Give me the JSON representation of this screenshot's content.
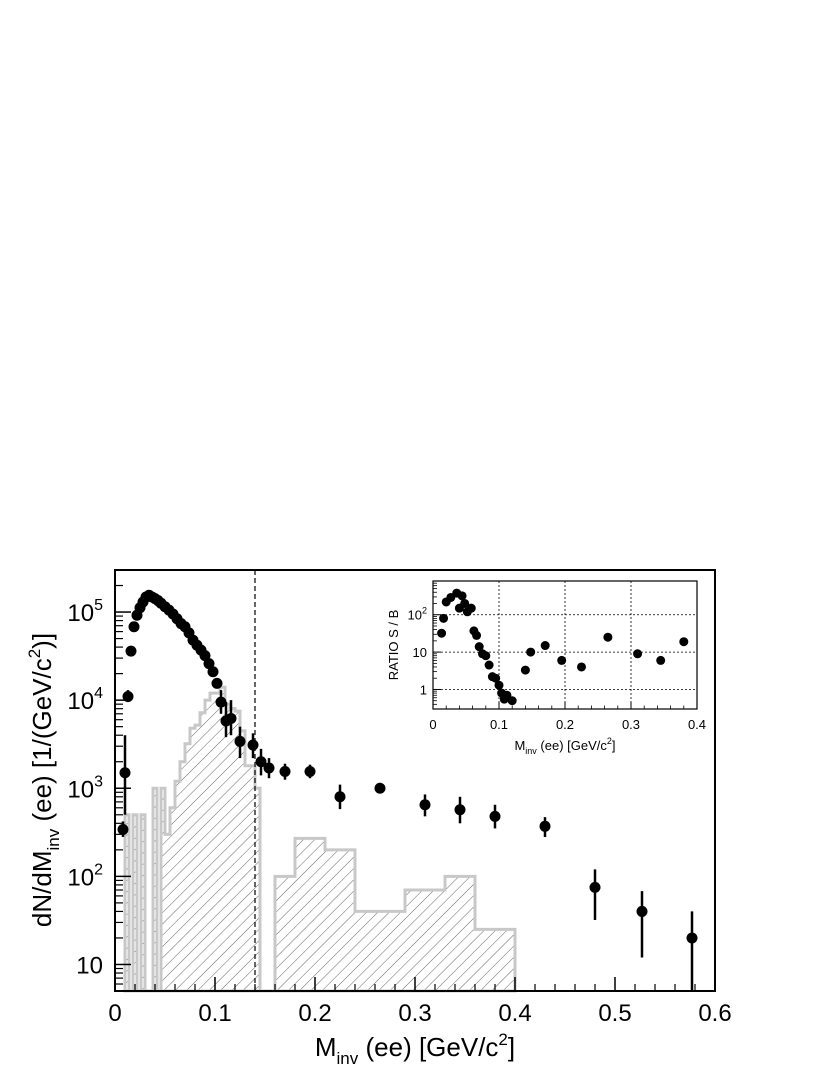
{
  "chart_data": [
    {
      "type": "scatter",
      "xlabel_main": "M",
      "xlabel_sub": "inv",
      "xlabel_rest": " (ee) [GeV/c",
      "xlabel_sup": "2",
      "xlabel_close": "]",
      "ylabel_main": "dN/dM",
      "ylabel_sub": "inv",
      "ylabel_rest": " (ee) [1/(GeV/c",
      "ylabel_sup": "2",
      "ylabel_close": ")]",
      "xlim": [
        0,
        0.6
      ],
      "ylim": [
        5,
        300000
      ],
      "yscale": "log",
      "grid": false,
      "x_ticks": [
        "0",
        "0.1",
        "0.2",
        "0.3",
        "0.4",
        "0.5",
        "0.6"
      ],
      "y_ticks": [
        {
          "base": "10",
          "exp": ""
        },
        {
          "base": "10",
          "exp": "2"
        },
        {
          "base": "10",
          "exp": "3"
        },
        {
          "base": "10",
          "exp": "4"
        },
        {
          "base": "10",
          "exp": "5"
        }
      ],
      "dashed_line_x": 0.14,
      "data_points": [
        {
          "x": 0.008,
          "y": 340,
          "lo": 280,
          "hi": 420
        },
        {
          "x": 0.01,
          "y": 1500,
          "lo": 500,
          "hi": 4000
        },
        {
          "x": 0.013,
          "y": 11000,
          "lo": 9500,
          "hi": 13000
        },
        {
          "x": 0.016,
          "y": 36000
        },
        {
          "x": 0.019,
          "y": 68000
        },
        {
          "x": 0.022,
          "y": 92000
        },
        {
          "x": 0.025,
          "y": 112000
        },
        {
          "x": 0.028,
          "y": 130000
        },
        {
          "x": 0.031,
          "y": 148000
        },
        {
          "x": 0.034,
          "y": 155000
        },
        {
          "x": 0.037,
          "y": 148000
        },
        {
          "x": 0.04,
          "y": 142000
        },
        {
          "x": 0.043,
          "y": 135000
        },
        {
          "x": 0.046,
          "y": 126000
        },
        {
          "x": 0.05,
          "y": 115000
        },
        {
          "x": 0.054,
          "y": 105000
        },
        {
          "x": 0.058,
          "y": 95000
        },
        {
          "x": 0.062,
          "y": 84000
        },
        {
          "x": 0.066,
          "y": 74000
        },
        {
          "x": 0.07,
          "y": 68000
        },
        {
          "x": 0.074,
          "y": 58000
        },
        {
          "x": 0.078,
          "y": 48000
        },
        {
          "x": 0.082,
          "y": 42000
        },
        {
          "x": 0.086,
          "y": 37000
        },
        {
          "x": 0.09,
          "y": 32000
        },
        {
          "x": 0.094,
          "y": 26000
        },
        {
          "x": 0.098,
          "y": 21000
        },
        {
          "x": 0.102,
          "y": 15500
        },
        {
          "x": 0.106,
          "y": 9500,
          "lo": 7000,
          "hi": 13000
        },
        {
          "x": 0.111,
          "y": 5800,
          "lo": 3800,
          "hi": 9500
        },
        {
          "x": 0.116,
          "y": 6200,
          "lo": 4000,
          "hi": 10000
        },
        {
          "x": 0.125,
          "y": 3400,
          "lo": 2200,
          "hi": 5000
        },
        {
          "x": 0.138,
          "y": 3100,
          "lo": 2200,
          "hi": 4200
        },
        {
          "x": 0.146,
          "y": 2000,
          "lo": 1400,
          "hi": 2800
        },
        {
          "x": 0.154,
          "y": 1700,
          "lo": 1300,
          "hi": 2200
        },
        {
          "x": 0.17,
          "y": 1550,
          "lo": 1250,
          "hi": 1900
        },
        {
          "x": 0.195,
          "y": 1550,
          "lo": 1300,
          "hi": 1850
        },
        {
          "x": 0.225,
          "y": 800,
          "lo": 580,
          "hi": 1100
        },
        {
          "x": 0.265,
          "y": 1000,
          "lo": 880,
          "hi": 1150
        },
        {
          "x": 0.31,
          "y": 650,
          "lo": 480,
          "hi": 850
        },
        {
          "x": 0.345,
          "y": 570,
          "lo": 400,
          "hi": 800
        },
        {
          "x": 0.38,
          "y": 480,
          "lo": 350,
          "hi": 650
        },
        {
          "x": 0.43,
          "y": 370,
          "lo": 280,
          "hi": 470
        },
        {
          "x": 0.48,
          "y": 75,
          "lo": 32,
          "hi": 120
        },
        {
          "x": 0.527,
          "y": 40,
          "lo": 12,
          "hi": 68
        },
        {
          "x": 0.577,
          "y": 20,
          "lo": 5,
          "hi": 40
        }
      ],
      "background_histogram": [
        [
          0.01,
          0.014,
          500
        ],
        [
          0.014,
          0.018,
          5
        ],
        [
          0.018,
          0.022,
          500
        ],
        [
          0.022,
          0.026,
          5
        ],
        [
          0.026,
          0.03,
          500
        ],
        [
          0.03,
          0.038,
          5
        ],
        [
          0.038,
          0.042,
          1000
        ],
        [
          0.042,
          0.046,
          5
        ],
        [
          0.046,
          0.05,
          1000
        ],
        [
          0.05,
          0.055,
          300
        ],
        [
          0.055,
          0.06,
          600
        ],
        [
          0.06,
          0.065,
          1200
        ],
        [
          0.065,
          0.07,
          2000
        ],
        [
          0.07,
          0.075,
          3200
        ],
        [
          0.075,
          0.08,
          4800
        ],
        [
          0.08,
          0.085,
          5200
        ],
        [
          0.085,
          0.09,
          7200
        ],
        [
          0.09,
          0.095,
          10000
        ],
        [
          0.095,
          0.1,
          12000
        ],
        [
          0.1,
          0.105,
          12000
        ],
        [
          0.105,
          0.11,
          14000
        ],
        [
          0.11,
          0.115,
          9000
        ],
        [
          0.115,
          0.12,
          8000
        ],
        [
          0.12,
          0.125,
          7500
        ],
        [
          0.125,
          0.13,
          4500
        ],
        [
          0.13,
          0.135,
          1800
        ],
        [
          0.135,
          0.14,
          1800
        ],
        [
          0.14,
          0.145,
          1000
        ],
        [
          0.145,
          0.155,
          5
        ],
        [
          0.155,
          0.16,
          5
        ],
        [
          0.16,
          0.18,
          100
        ],
        [
          0.18,
          0.21,
          270
        ],
        [
          0.21,
          0.24,
          200
        ],
        [
          0.24,
          0.29,
          40
        ],
        [
          0.29,
          0.33,
          70
        ],
        [
          0.33,
          0.36,
          100
        ],
        [
          0.36,
          0.4,
          25
        ]
      ]
    },
    {
      "type": "scatter",
      "xlabel_main": "M",
      "xlabel_sub": "inv",
      "xlabel_rest": " (ee) [GeV/c",
      "xlabel_sup": "2",
      "xlabel_close": "]",
      "ylabel": "RATIO S / B",
      "xlim": [
        0,
        0.4
      ],
      "ylim": [
        0.3,
        800
      ],
      "yscale": "log",
      "grid": true,
      "x_ticks": [
        "0",
        "0.1",
        "0.2",
        "0.3",
        "0.4"
      ],
      "y_ticks": [
        {
          "base": "1",
          "exp": ""
        },
        {
          "base": "10",
          "exp": ""
        },
        {
          "base": "10",
          "exp": "2"
        }
      ],
      "data_points": [
        {
          "x": 0.013,
          "y": 32
        },
        {
          "x": 0.016,
          "y": 80
        },
        {
          "x": 0.02,
          "y": 220
        },
        {
          "x": 0.027,
          "y": 290
        },
        {
          "x": 0.036,
          "y": 380
        },
        {
          "x": 0.04,
          "y": 150
        },
        {
          "x": 0.044,
          "y": 320
        },
        {
          "x": 0.048,
          "y": 200
        },
        {
          "x": 0.052,
          "y": 120
        },
        {
          "x": 0.058,
          "y": 150
        },
        {
          "x": 0.062,
          "y": 37
        },
        {
          "x": 0.066,
          "y": 28
        },
        {
          "x": 0.07,
          "y": 14
        },
        {
          "x": 0.075,
          "y": 9
        },
        {
          "x": 0.08,
          "y": 8
        },
        {
          "x": 0.085,
          "y": 4.5
        },
        {
          "x": 0.09,
          "y": 2.2
        },
        {
          "x": 0.095,
          "y": 2
        },
        {
          "x": 0.1,
          "y": 1.3
        },
        {
          "x": 0.104,
          "y": 0.8
        },
        {
          "x": 0.108,
          "y": 0.55
        },
        {
          "x": 0.112,
          "y": 0.7
        },
        {
          "x": 0.12,
          "y": 0.5
        },
        {
          "x": 0.14,
          "y": 3.3
        },
        {
          "x": 0.148,
          "y": 10
        },
        {
          "x": 0.17,
          "y": 15
        },
        {
          "x": 0.195,
          "y": 6
        },
        {
          "x": 0.225,
          "y": 4
        },
        {
          "x": 0.265,
          "y": 25
        },
        {
          "x": 0.31,
          "y": 9
        },
        {
          "x": 0.345,
          "y": 6
        },
        {
          "x": 0.38,
          "y": 19
        }
      ]
    }
  ]
}
